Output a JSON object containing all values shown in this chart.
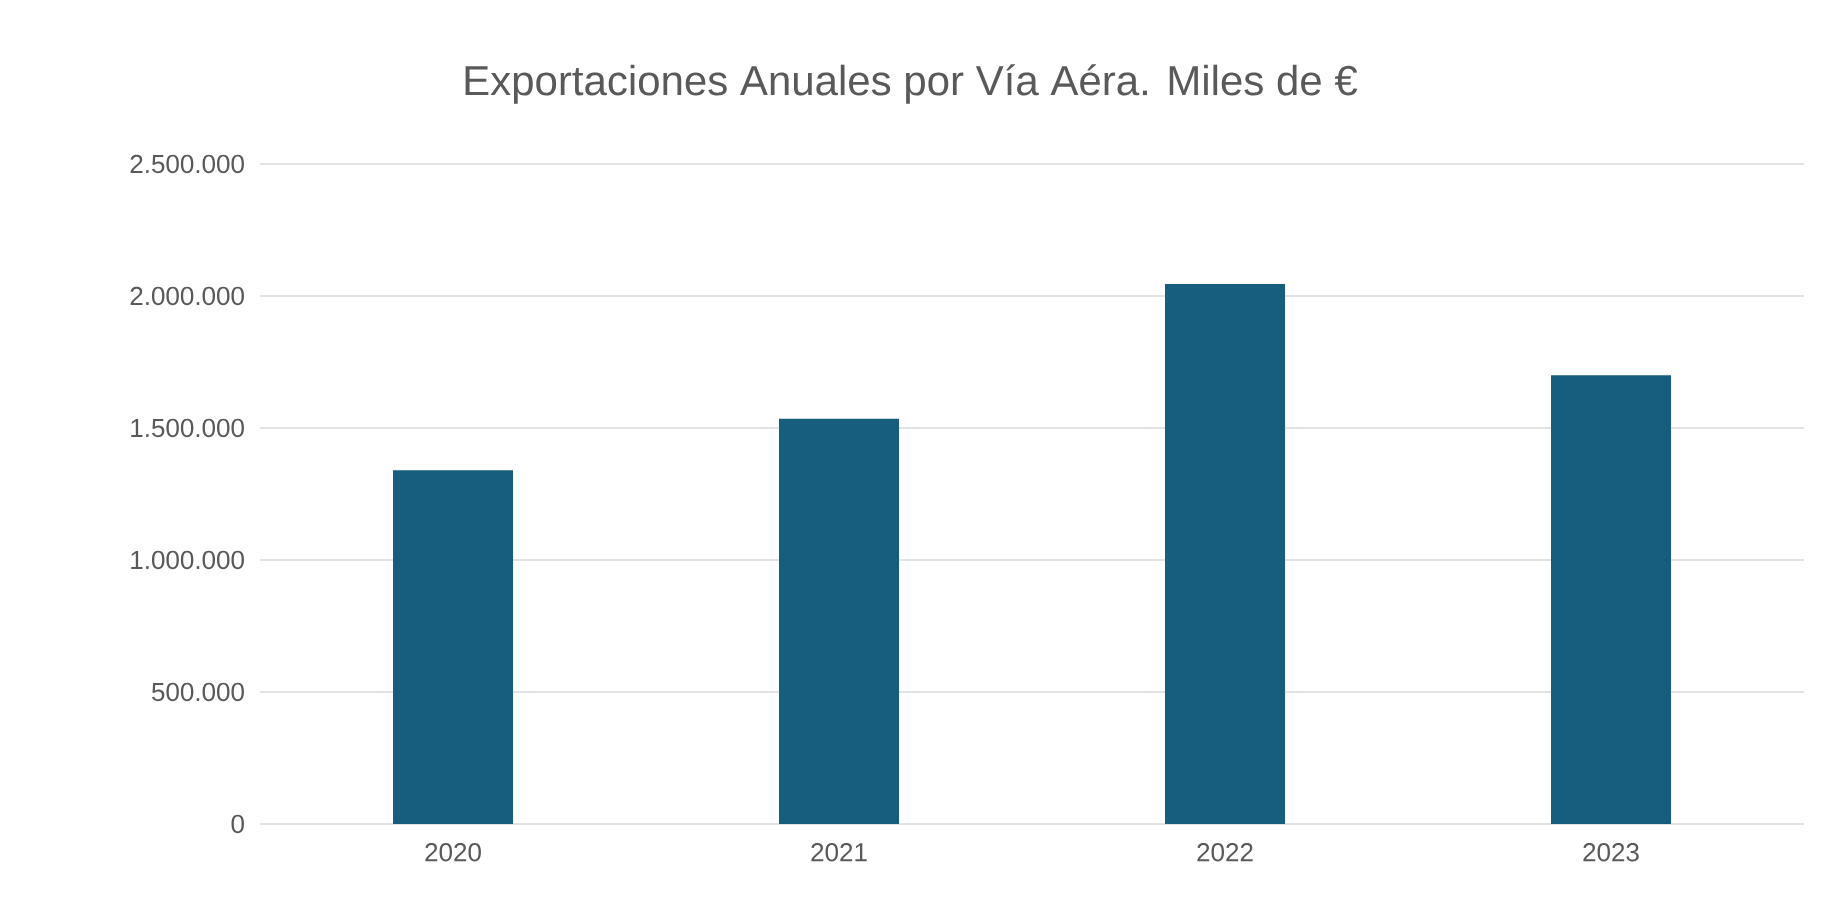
{
  "chart_data": {
    "type": "bar",
    "title": "Exportaciones Anuales por Vía Aéra. Miles de €",
    "categories": [
      "2020",
      "2021",
      "2022",
      "2023"
    ],
    "values": [
      1340000,
      1535000,
      2045000,
      1700000
    ],
    "color": "#175e7e",
    "ylim": [
      0,
      2500000
    ],
    "yticks": [
      {
        "value": 0,
        "label": "0"
      },
      {
        "value": 500000,
        "label": "500.000"
      },
      {
        "value": 1000000,
        "label": "1.000.000"
      },
      {
        "value": 1500000,
        "label": "1.500.000"
      },
      {
        "value": 2000000,
        "label": "2.000.000"
      },
      {
        "value": 2500000,
        "label": "2.500.000"
      }
    ],
    "grid": "y"
  }
}
